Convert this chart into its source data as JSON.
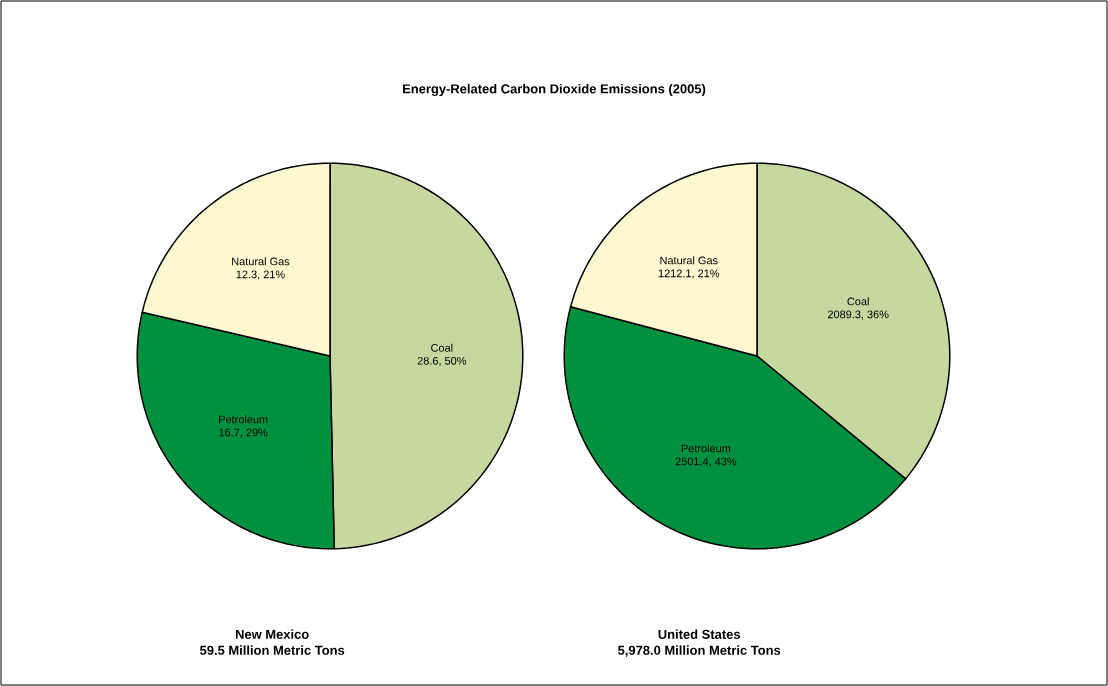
{
  "chart_data": [
    {
      "type": "pie",
      "title": "Energy-Related Carbon Dioxide Emissions (2005)",
      "xlabel": "New Mexico",
      "annotations": [
        "59.5 Million Metric Tons"
      ],
      "categories": [
        "Coal",
        "Petroleum",
        "Natural Gas"
      ],
      "values": [
        28.6,
        16.7,
        12.3
      ],
      "colors": [
        "#c5d89f",
        "#009140",
        "#fdf8cf"
      ],
      "value_labels": [
        "28.6, 50%",
        "16.7, 29%",
        "12.3, 21%"
      ]
    },
    {
      "type": "pie",
      "xlabel": "United States",
      "annotations": [
        "5,978.0 Million Metric Tons"
      ],
      "categories": [
        "Coal",
        "Petroleum",
        "Natural Gas"
      ],
      "values": [
        2089.3,
        2501.4,
        1212.1
      ],
      "colors": [
        "#c5d89f",
        "#009140",
        "#fdf8cf"
      ],
      "value_labels": [
        "2089.3, 36%",
        "2501.4, 43%",
        "1212.1, 21%"
      ]
    }
  ]
}
